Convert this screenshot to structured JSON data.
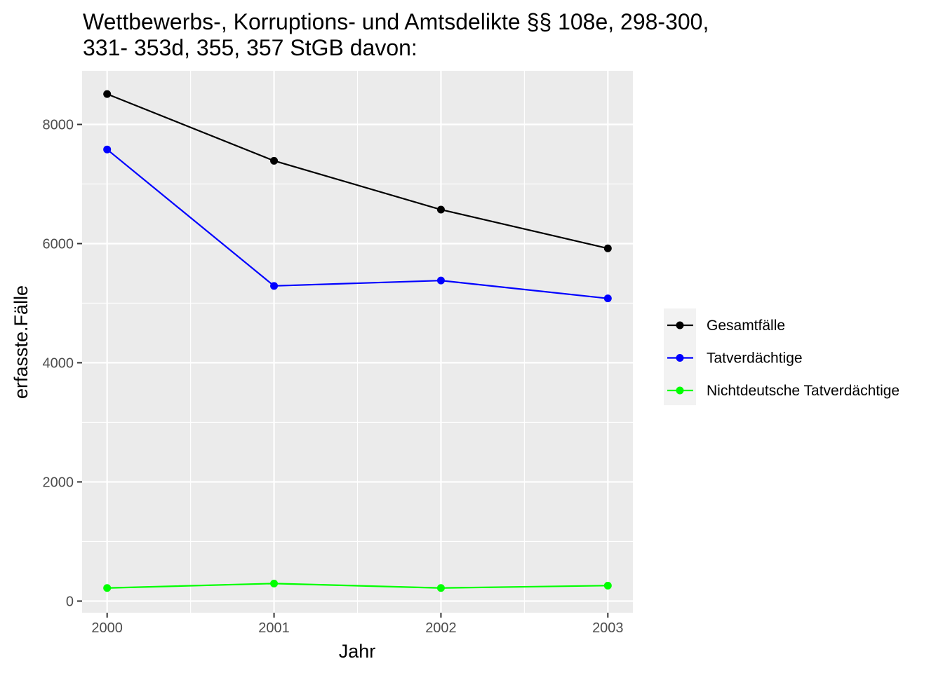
{
  "chart_data": {
    "type": "line",
    "title_lines": [
      "Wettbewerbs-, Korruptions- und Amtsdelikte §§ 108e, 298-300,",
      "331- 353d, 355, 357 StGB davon:"
    ],
    "xlabel": "Jahr",
    "ylabel": "erfasste.Fälle",
    "x": [
      2000,
      2001,
      2002,
      2003
    ],
    "x_tick_labels": [
      "2000",
      "2001",
      "2002",
      "2003"
    ],
    "xlim": [
      1999.85,
      2003.15
    ],
    "y_ticks": [
      0,
      2000,
      4000,
      6000,
      8000
    ],
    "y_tick_labels": [
      "0",
      "2000",
      "4000",
      "6000",
      "8000"
    ],
    "ylim": [
      -195,
      8900
    ],
    "grid": true,
    "legend_position": "right",
    "series": [
      {
        "name": "Gesamtfälle",
        "color": "#000000",
        "values": [
          8510,
          7390,
          6570,
          5920
        ]
      },
      {
        "name": "Tatverdächtige",
        "color": "#0000ff",
        "values": [
          7580,
          5290,
          5380,
          5080
        ]
      },
      {
        "name": "Nichtdeutsche Tatverdächtige",
        "color": "#00ff00",
        "values": [
          220,
          295,
          220,
          260
        ]
      }
    ]
  }
}
